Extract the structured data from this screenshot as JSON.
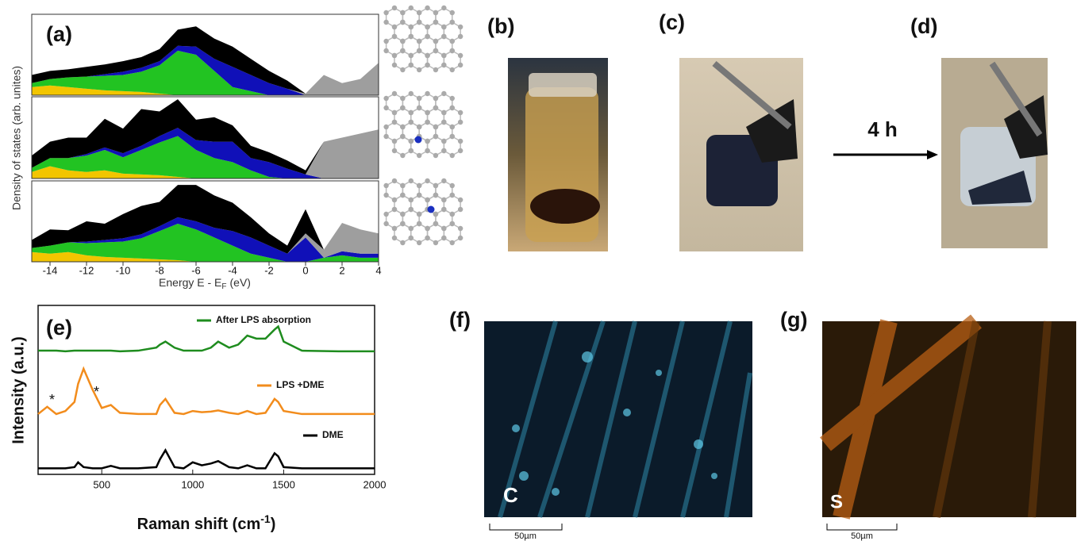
{
  "panel_labels": [
    "(a)",
    "(b)",
    "(c)",
    "(d)",
    "(e)",
    "(f)",
    "(g)"
  ],
  "chart_data": [
    {
      "type": "area",
      "xlabel": "Energy E - E",
      "xlabel_sub": "F",
      "xlabel_end": "(eV)",
      "ylabel": "Density of states (arb. unites)",
      "x": [
        -15,
        -14,
        -13,
        -12,
        -11,
        -10,
        -9,
        -8,
        -7,
        -6,
        -5,
        -4,
        -3,
        -2,
        -1,
        0,
        1,
        2,
        3,
        4
      ],
      "xlim": [
        -15,
        4
      ],
      "xticks": [
        -14,
        -12,
        -10,
        -8,
        -6,
        -4,
        -2,
        0,
        2,
        4
      ],
      "ylim": [
        0,
        1
      ],
      "subplots": [
        {
          "series": [
            {
              "color": "#f2c500",
              "values": [
                0.1,
                0.12,
                0.1,
                0.08,
                0.06,
                0.05,
                0.04,
                0.02,
                0,
                0,
                0,
                0,
                0,
                0,
                0,
                0,
                0,
                0,
                0,
                0
              ]
            },
            {
              "color": "#22c322",
              "values": [
                0.05,
                0.08,
                0.12,
                0.15,
                0.18,
                0.2,
                0.25,
                0.35,
                0.55,
                0.5,
                0.3,
                0.1,
                0.05,
                0,
                0,
                0,
                0,
                0,
                0,
                0
              ]
            },
            {
              "color": "#1010b8",
              "values": [
                0,
                0,
                0,
                0,
                0.02,
                0.04,
                0.05,
                0.05,
                0.06,
                0.1,
                0.15,
                0.25,
                0.2,
                0.15,
                0.08,
                0,
                0,
                0,
                0,
                0
              ]
            },
            {
              "color": "#9e9e9e",
              "values": [
                0,
                0,
                0,
                0,
                0,
                0,
                0,
                0,
                0,
                0,
                0,
                0,
                0,
                0,
                0,
                0.02,
                0.25,
                0.15,
                0.2,
                0.4
              ]
            },
            {
              "color": "#000000",
              "values": [
                0.1,
                0.1,
                0.1,
                0.12,
                0.12,
                0.13,
                0.13,
                0.15,
                0.2,
                0.25,
                0.25,
                0.25,
                0.2,
                0.15,
                0.1,
                0,
                0,
                0,
                0,
                0
              ]
            }
          ]
        },
        {
          "series": [
            {
              "color": "#f2c500",
              "values": [
                0.08,
                0.15,
                0.1,
                0.08,
                0.1,
                0.06,
                0.05,
                0.04,
                0.02,
                0,
                0,
                0,
                0,
                0,
                0,
                0,
                0,
                0,
                0,
                0
              ]
            },
            {
              "color": "#22c322",
              "values": [
                0.05,
                0.1,
                0.15,
                0.2,
                0.25,
                0.2,
                0.3,
                0.4,
                0.5,
                0.35,
                0.25,
                0.2,
                0.1,
                0.02,
                0,
                0,
                0,
                0,
                0,
                0
              ]
            },
            {
              "color": "#1010b8",
              "values": [
                0,
                0,
                0,
                0.02,
                0.03,
                0.05,
                0.05,
                0.08,
                0.1,
                0.12,
                0.2,
                0.25,
                0.15,
                0.18,
                0.12,
                0.05,
                0,
                0,
                0,
                0
              ]
            },
            {
              "color": "#9e9e9e",
              "values": [
                0,
                0,
                0,
                0,
                0,
                0,
                0,
                0,
                0,
                0,
                0,
                0,
                0,
                0,
                0,
                0,
                0.45,
                0.5,
                0.55,
                0.6
              ]
            },
            {
              "color": "#000000",
              "values": [
                0.15,
                0.2,
                0.25,
                0.2,
                0.35,
                0.3,
                0.45,
                0.3,
                0.35,
                0.25,
                0.3,
                0.2,
                0.15,
                0.12,
                0.1,
                0.05,
                0,
                0,
                0,
                0
              ]
            }
          ]
        },
        {
          "series": [
            {
              "color": "#f2c500",
              "values": [
                0.12,
                0.1,
                0.12,
                0.08,
                0.06,
                0.05,
                0.04,
                0.03,
                0.02,
                0,
                0,
                0,
                0,
                0,
                0,
                0,
                0,
                0,
                0,
                0
              ]
            },
            {
              "color": "#22c322",
              "values": [
                0.05,
                0.1,
                0.12,
                0.15,
                0.18,
                0.2,
                0.25,
                0.35,
                0.45,
                0.4,
                0.3,
                0.2,
                0.1,
                0.05,
                0,
                0,
                0.05,
                0.08,
                0.05,
                0.05
              ]
            },
            {
              "color": "#1010b8",
              "values": [
                0,
                0,
                0,
                0.02,
                0.03,
                0.04,
                0.05,
                0.06,
                0.08,
                0.1,
                0.12,
                0.18,
                0.2,
                0.15,
                0.1,
                0.3,
                0,
                0.05,
                0.05,
                0.05
              ]
            },
            {
              "color": "#9e9e9e",
              "values": [
                0,
                0,
                0,
                0,
                0,
                0,
                0,
                0,
                0,
                0,
                0,
                0,
                0,
                0,
                0,
                0.05,
                0.1,
                0.35,
                0.3,
                0.25
              ]
            },
            {
              "color": "#000000",
              "values": [
                0.1,
                0.2,
                0.15,
                0.25,
                0.2,
                0.3,
                0.35,
                0.3,
                0.4,
                0.45,
                0.4,
                0.35,
                0.25,
                0.15,
                0.1,
                0.3,
                0,
                0,
                0,
                0
              ]
            }
          ]
        }
      ]
    },
    {
      "type": "line",
      "xlabel": "Raman shift (cm",
      "xlabel_sup": "-1",
      "xlabel_end": ")",
      "ylabel": "Intensity (a.u.)",
      "x": [
        150,
        200,
        250,
        300,
        350,
        370,
        400,
        450,
        500,
        550,
        600,
        700,
        800,
        820,
        850,
        900,
        950,
        1000,
        1050,
        1100,
        1140,
        1200,
        1250,
        1300,
        1350,
        1400,
        1450,
        1470,
        1500,
        1600,
        1800,
        2000
      ],
      "xlim": [
        150,
        2000
      ],
      "xticks": [
        500,
        1000,
        1500,
        2000
      ],
      "ylim": [
        0,
        2.8
      ],
      "series": [
        {
          "name": "After LPS absorption",
          "color": "#1e8c1e",
          "values": [
            2.05,
            2.05,
            2.05,
            2.04,
            2.05,
            2.05,
            2.05,
            2.05,
            2.05,
            2.05,
            2.04,
            2.05,
            2.1,
            2.15,
            2.2,
            2.1,
            2.05,
            2.05,
            2.05,
            2.1,
            2.2,
            2.1,
            2.15,
            2.3,
            2.25,
            2.25,
            2.4,
            2.45,
            2.2,
            2.05,
            2.04,
            2.04
          ]
        },
        {
          "name": "LPS +DME",
          "color": "#f28c1c",
          "values": [
            1.0,
            1.12,
            1.0,
            1.05,
            1.2,
            1.5,
            1.75,
            1.4,
            1.1,
            1.15,
            1.02,
            1.0,
            1.0,
            1.15,
            1.25,
            1.02,
            1.0,
            1.05,
            1.03,
            1.04,
            1.06,
            1.02,
            1.0,
            1.05,
            1.0,
            1.02,
            1.25,
            1.2,
            1.05,
            1.0,
            1.0,
            1.0
          ]
        },
        {
          "name": "DME",
          "color": "#000000",
          "values": [
            0.1,
            0.1,
            0.1,
            0.1,
            0.12,
            0.2,
            0.12,
            0.1,
            0.1,
            0.14,
            0.1,
            0.1,
            0.12,
            0.25,
            0.4,
            0.12,
            0.1,
            0.2,
            0.15,
            0.18,
            0.22,
            0.12,
            0.1,
            0.15,
            0.1,
            0.1,
            0.35,
            0.3,
            0.12,
            0.1,
            0.1,
            0.1
          ]
        }
      ],
      "asterisks": [
        "*",
        "*"
      ]
    }
  ],
  "annotations": {
    "arrow_label": "4 h",
    "map_f_label": "C",
    "map_g_label": "S",
    "scale_bar_f": "50µm",
    "scale_bar_g": "50µm"
  }
}
